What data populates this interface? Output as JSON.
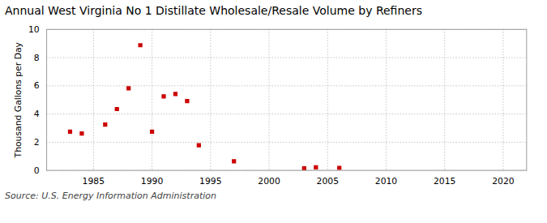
{
  "chart_data": {
    "type": "scatter",
    "title": "Annual West Virginia No 1 Distillate Wholesale/Resale Volume by Refiners",
    "ylabel": "Thousand Gallons per Day",
    "source": "Source: U.S. Energy Information Administration",
    "x": [
      1983,
      1984,
      1986,
      1987,
      1988,
      1989,
      1990,
      1991,
      1992,
      1993,
      1994,
      1997,
      2003,
      2004,
      2006
    ],
    "values": [
      2.75,
      2.62,
      3.25,
      4.35,
      5.82,
      8.88,
      2.75,
      5.25,
      5.42,
      4.92,
      1.78,
      0.65,
      0.15,
      0.22,
      0.18
    ],
    "color": "#cc0000",
    "marker": "square",
    "xlim": [
      1981,
      2022
    ],
    "ylim": [
      0,
      10
    ],
    "xticks": [
      1985,
      1990,
      1995,
      2000,
      2005,
      2010,
      2015,
      2020
    ],
    "yticks": [
      0,
      2,
      4,
      6,
      8,
      10
    ],
    "grid": true
  }
}
